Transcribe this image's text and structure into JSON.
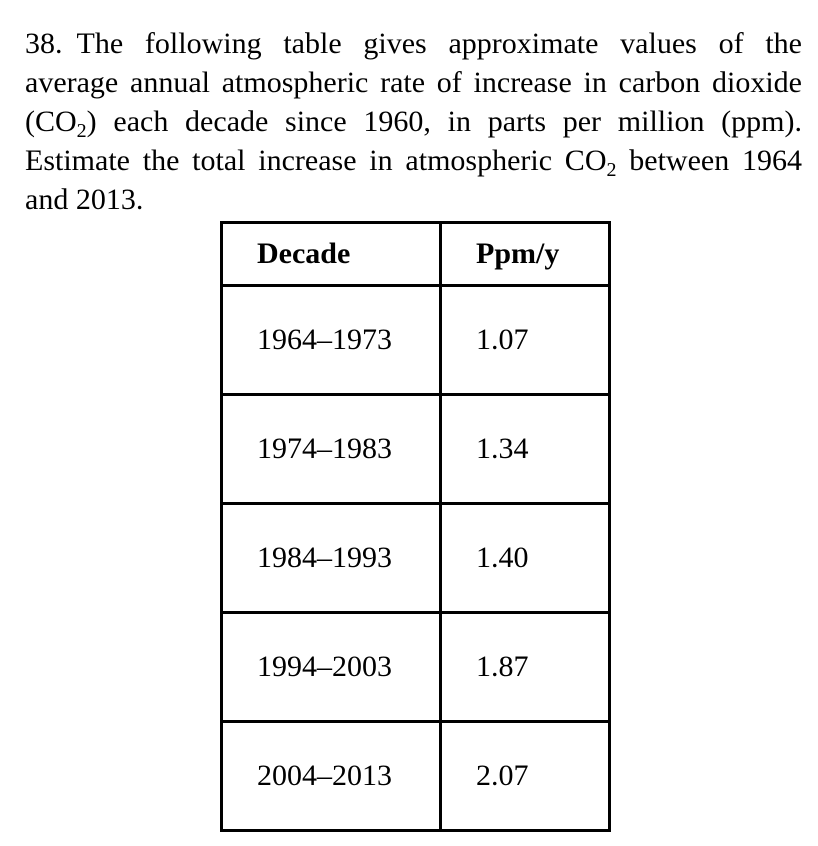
{
  "problem": {
    "number": "38.",
    "text_part1": "The following table gives approximate values of the average annual atmospheric rate of increase in carbon dioxide (CO",
    "sub1": "2",
    "text_part2": ") each decade since 1960, in parts per million (ppm). Estimate the total increase in atmospheric CO",
    "sub2": "2",
    "text_part3": " between 1964 and 2013."
  },
  "table": {
    "headers": [
      "Decade",
      "Ppm/y"
    ],
    "rows": [
      [
        "1964–1973",
        "1.07"
      ],
      [
        "1974–1983",
        "1.34"
      ],
      [
        "1984–1993",
        "1.40"
      ],
      [
        "1994–2003",
        "1.87"
      ],
      [
        "2004–2013",
        "2.07"
      ]
    ]
  }
}
